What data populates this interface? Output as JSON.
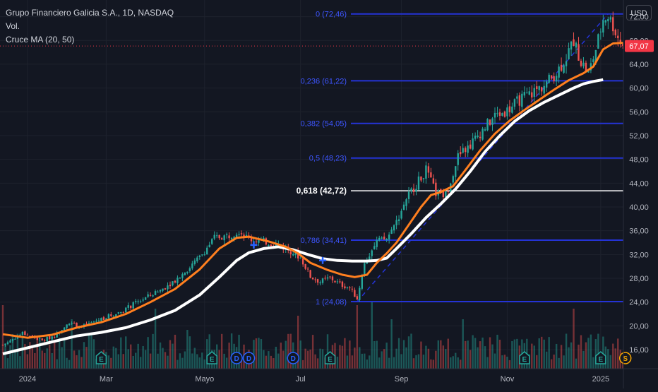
{
  "header": {
    "title": "Grupo Financiero Galicia S.A., 1D, NASDAQ",
    "volume_label": "Vol.",
    "indicator_label": "Cruce MA (20, 50)",
    "currency": "USD"
  },
  "colors": {
    "background": "#131722",
    "grid": "#1e222d",
    "up": "#26a69a",
    "down": "#ef5350",
    "ma_fast": "#ff7f1f",
    "ma_slow": "#ffffff",
    "fib_level": "#2433d6",
    "fib_label": "#3d55ff",
    "text": "#b2b5be",
    "price_badge": "#f23645"
  },
  "chart_data": {
    "type": "candlestick",
    "y_axis": {
      "min": 12.8,
      "max": 74.8,
      "ticks": [
        16,
        20,
        24,
        28,
        32,
        36,
        40,
        44,
        48,
        52,
        56,
        60,
        64,
        68,
        72
      ],
      "tick_labels": [
        "16,00",
        "20,00",
        "24,00",
        "28,00",
        "32,00",
        "36,00",
        "40,00",
        "44,00",
        "48,00",
        "52,00",
        "56,00",
        "60,00",
        "64,00",
        "68,00",
        "72,00"
      ]
    },
    "x_axis": {
      "labels": [
        {
          "label": "2024",
          "bar": 10
        },
        {
          "label": "Mar",
          "bar": 42
        },
        {
          "label": "Mayo",
          "bar": 82
        },
        {
          "label": "Jul",
          "bar": 121
        },
        {
          "label": "Sep",
          "bar": 162
        },
        {
          "label": "Nov",
          "bar": 205
        },
        {
          "label": "2025",
          "bar": 243
        }
      ]
    },
    "last_price": {
      "value": 67.07,
      "label": "67,07"
    },
    "fib_levels": [
      {
        "ratio": 1,
        "price": 24.08,
        "label": "1 (24,08)",
        "highlight": false
      },
      {
        "ratio": 0.786,
        "price": 34.41,
        "label": "0,786 (34,41)",
        "highlight": false
      },
      {
        "ratio": 0.618,
        "price": 42.72,
        "label": "0,618 (42,72)",
        "highlight": true
      },
      {
        "ratio": 0.5,
        "price": 48.23,
        "label": "0,5 (48,23)",
        "highlight": false
      },
      {
        "ratio": 0.382,
        "price": 54.05,
        "label": "0,382 (54,05)",
        "highlight": false
      },
      {
        "ratio": 0.236,
        "price": 61.22,
        "label": "0,236 (61,22)",
        "highlight": false
      },
      {
        "ratio": 0,
        "price": 72.46,
        "label": "0 (72,46)",
        "highlight": false
      }
    ],
    "price_path": [
      [
        0,
        16.8
      ],
      [
        8,
        18.8
      ],
      [
        16,
        17.5
      ],
      [
        22,
        18.6
      ],
      [
        26,
        20.5
      ],
      [
        32,
        19.8
      ],
      [
        40,
        21.2
      ],
      [
        48,
        22.4
      ],
      [
        56,
        24.3
      ],
      [
        64,
        26.0
      ],
      [
        72,
        28.3
      ],
      [
        80,
        31.5
      ],
      [
        86,
        34.8
      ],
      [
        92,
        35.2
      ],
      [
        96,
        36.0
      ],
      [
        100,
        34.6
      ],
      [
        106,
        34.2
      ],
      [
        112,
        33.6
      ],
      [
        117,
        32.6
      ],
      [
        121,
        31.5
      ],
      [
        125,
        28.3
      ],
      [
        129,
        27.4
      ],
      [
        133,
        28.1
      ],
      [
        137,
        27.0
      ],
      [
        141,
        26.4
      ],
      [
        144,
        24.6
      ],
      [
        147,
        30.5
      ],
      [
        152,
        34.2
      ],
      [
        156,
        34.6
      ],
      [
        160,
        37.5
      ],
      [
        164,
        41.5
      ],
      [
        168,
        43.8
      ],
      [
        172,
        46.2
      ],
      [
        176,
        42.3
      ],
      [
        180,
        42.0
      ],
      [
        185,
        48.5
      ],
      [
        190,
        50.5
      ],
      [
        195,
        53.0
      ],
      [
        200,
        55.3
      ],
      [
        205,
        56.2
      ],
      [
        210,
        58.0
      ],
      [
        215,
        59.2
      ],
      [
        220,
        60.5
      ],
      [
        225,
        62.6
      ],
      [
        229,
        65.2
      ],
      [
        232,
        68.0
      ],
      [
        235,
        64.5
      ],
      [
        238,
        62.4
      ],
      [
        241,
        66.5
      ],
      [
        244,
        71.6
      ],
      [
        246,
        72.2
      ],
      [
        248,
        70.5
      ],
      [
        250,
        68.5
      ],
      [
        252,
        67.07
      ]
    ],
    "ma_fast_points": [
      [
        0,
        18.6
      ],
      [
        10,
        18.0
      ],
      [
        20,
        18.5
      ],
      [
        30,
        19.7
      ],
      [
        40,
        20.6
      ],
      [
        50,
        22.0
      ],
      [
        60,
        24.0
      ],
      [
        70,
        26.2
      ],
      [
        80,
        29.5
      ],
      [
        88,
        33.0
      ],
      [
        95,
        34.8
      ],
      [
        100,
        35.0
      ],
      [
        108,
        34.2
      ],
      [
        115,
        33.3
      ],
      [
        120,
        32.2
      ],
      [
        125,
        30.6
      ],
      [
        132,
        29.4
      ],
      [
        138,
        28.6
      ],
      [
        143,
        28.2
      ],
      [
        148,
        28.6
      ],
      [
        152,
        30.6
      ],
      [
        156,
        32.2
      ],
      [
        160,
        34.0
      ],
      [
        165,
        37.0
      ],
      [
        170,
        40.0
      ],
      [
        174,
        42.0
      ],
      [
        178,
        42.5
      ],
      [
        183,
        43.5
      ],
      [
        188,
        46.2
      ],
      [
        194,
        49.5
      ],
      [
        200,
        52.3
      ],
      [
        206,
        54.5
      ],
      [
        212,
        56.3
      ],
      [
        218,
        58.0
      ],
      [
        224,
        59.7
      ],
      [
        230,
        61.3
      ],
      [
        236,
        62.5
      ],
      [
        240,
        63.6
      ],
      [
        244,
        66.5
      ],
      [
        248,
        67.5
      ],
      [
        252,
        67.6
      ]
    ],
    "ma_slow_points": [
      [
        0,
        15.3
      ],
      [
        10,
        16.3
      ],
      [
        20,
        17.3
      ],
      [
        30,
        18.3
      ],
      [
        40,
        18.9
      ],
      [
        50,
        19.7
      ],
      [
        60,
        21.0
      ],
      [
        70,
        22.6
      ],
      [
        80,
        25.2
      ],
      [
        88,
        28.2
      ],
      [
        95,
        31.0
      ],
      [
        100,
        32.3
      ],
      [
        106,
        33.0
      ],
      [
        112,
        33.3
      ],
      [
        118,
        32.8
      ],
      [
        124,
        32.0
      ],
      [
        130,
        31.3
      ],
      [
        136,
        31.0
      ],
      [
        142,
        30.9
      ],
      [
        148,
        30.9
      ],
      [
        152,
        31.0
      ],
      [
        156,
        31.4
      ],
      [
        160,
        33.0
      ],
      [
        166,
        35.5
      ],
      [
        172,
        38.2
      ],
      [
        178,
        40.5
      ],
      [
        184,
        43.0
      ],
      [
        190,
        46.0
      ],
      [
        196,
        49.3
      ],
      [
        202,
        52.0
      ],
      [
        208,
        54.4
      ],
      [
        214,
        56.2
      ],
      [
        220,
        57.6
      ],
      [
        226,
        58.8
      ],
      [
        232,
        60.0
      ],
      [
        236,
        60.7
      ],
      [
        240,
        61.1
      ],
      [
        244,
        61.4
      ]
    ],
    "volume_spikes": [
      [
        0,
        0.9
      ],
      [
        28,
        0.7
      ],
      [
        62,
        0.85
      ],
      [
        75,
        0.55
      ],
      [
        120,
        0.75
      ],
      [
        144,
        0.9
      ],
      [
        150,
        0.95
      ],
      [
        158,
        0.7
      ],
      [
        187,
        0.7
      ],
      [
        232,
        0.85
      ]
    ],
    "events": [
      {
        "bar": 40,
        "label": "E",
        "kind": "earnings"
      },
      {
        "bar": 85,
        "label": "E",
        "kind": "earnings"
      },
      {
        "bar": 95,
        "label": "D",
        "kind": "dividend"
      },
      {
        "bar": 100,
        "label": "D",
        "kind": "dividend"
      },
      {
        "bar": 118,
        "label": "D",
        "kind": "dividend"
      },
      {
        "bar": 133,
        "label": "E",
        "kind": "earnings"
      },
      {
        "bar": 212,
        "label": "E",
        "kind": "earnings"
      },
      {
        "bar": 243,
        "label": "E",
        "kind": "earnings"
      },
      {
        "bar": 253,
        "label": "S",
        "kind": "split"
      }
    ],
    "cross_markers": [
      {
        "bar": 102,
        "price": 33.6
      },
      {
        "bar": 130,
        "price": 31.0
      }
    ]
  }
}
